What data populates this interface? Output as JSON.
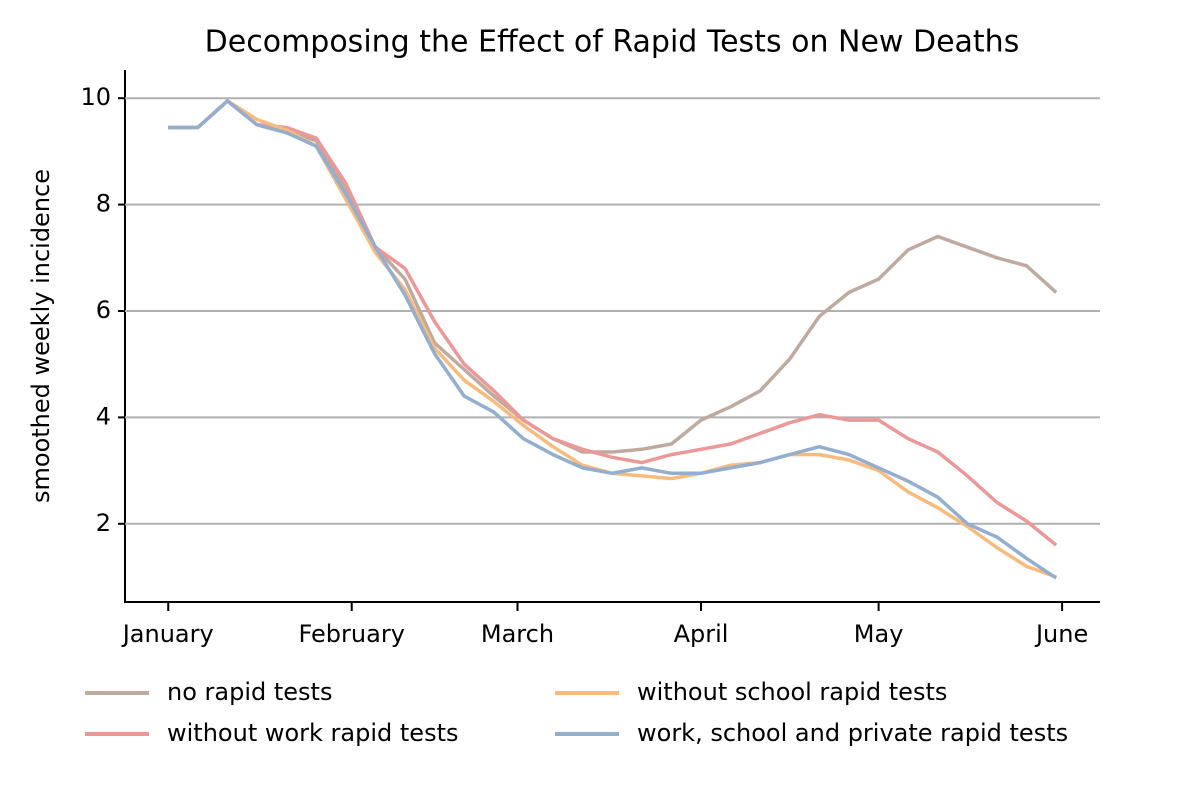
{
  "chart_data": {
    "type": "line",
    "title": "Decomposing the Effect of Rapid Tests on New Deaths",
    "y_label": "smoothed weekly incidence",
    "x": [
      0,
      5,
      10,
      15,
      20,
      25,
      30,
      35,
      40,
      45,
      50,
      55,
      60,
      65,
      70,
      75,
      80,
      85,
      90,
      95,
      100,
      105,
      110,
      115,
      120,
      125,
      130,
      135,
      140,
      145,
      150
    ],
    "xlim": [
      -7.3,
      157.4
    ],
    "xticks": [
      {
        "value": 0,
        "label": "January"
      },
      {
        "value": 31,
        "label": "February"
      },
      {
        "value": 59,
        "label": "March"
      },
      {
        "value": 90,
        "label": "April"
      },
      {
        "value": 120,
        "label": "May"
      },
      {
        "value": 151,
        "label": "June"
      }
    ],
    "ylim": [
      0.53,
      10.53
    ],
    "yticks": [
      2,
      4,
      6,
      8,
      10
    ],
    "grid": true,
    "legend": "lower center",
    "series": [
      {
        "name": "no rapid tests",
        "color": "#bfaaa0",
        "values": [
          9.45,
          9.45,
          9.95,
          9.5,
          9.4,
          9.2,
          8.3,
          7.2,
          6.6,
          5.4,
          4.9,
          4.4,
          3.95,
          3.6,
          3.35,
          3.35,
          3.4,
          3.5,
          3.95,
          4.2,
          4.5,
          5.1,
          5.9,
          6.35,
          6.6,
          7.15,
          7.4,
          7.2,
          7.0,
          6.85,
          6.35
        ]
      },
      {
        "name": "without work rapid tests",
        "color": "#eb9898",
        "values": [
          9.45,
          9.45,
          9.95,
          9.5,
          9.45,
          9.25,
          8.4,
          7.2,
          6.8,
          5.8,
          5.0,
          4.5,
          3.95,
          3.6,
          3.4,
          3.25,
          3.15,
          3.3,
          3.4,
          3.5,
          3.7,
          3.9,
          4.05,
          3.95,
          3.95,
          3.6,
          3.35,
          2.9,
          2.4,
          2.05,
          1.6
        ]
      },
      {
        "name": "without school rapid tests",
        "color": "#f7bb7d",
        "values": [
          9.45,
          9.45,
          9.95,
          9.6,
          9.4,
          9.1,
          8.1,
          7.1,
          6.4,
          5.3,
          4.7,
          4.3,
          3.85,
          3.45,
          3.1,
          2.95,
          2.9,
          2.85,
          2.95,
          3.1,
          3.15,
          3.3,
          3.3,
          3.2,
          3.0,
          2.6,
          2.3,
          1.95,
          1.55,
          1.2,
          1.0
        ]
      },
      {
        "name": "work, school and private rapid tests",
        "color": "#93aecf",
        "values": [
          9.45,
          9.45,
          9.95,
          9.5,
          9.35,
          9.1,
          8.2,
          7.2,
          6.3,
          5.2,
          4.4,
          4.1,
          3.6,
          3.3,
          3.05,
          2.95,
          3.05,
          2.95,
          2.95,
          3.05,
          3.15,
          3.3,
          3.45,
          3.3,
          3.05,
          2.8,
          2.5,
          2.0,
          1.75,
          1.35,
          0.98
        ]
      }
    ]
  }
}
